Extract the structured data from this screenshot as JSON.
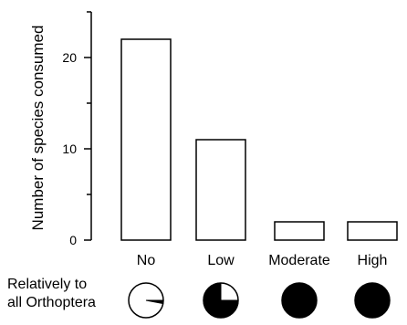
{
  "chart_data": {
    "type": "bar",
    "categories": [
      "No",
      "Low",
      "Moderate",
      "High"
    ],
    "values": [
      22,
      11,
      2,
      2
    ],
    "ylabel": "Number of species consumed",
    "ylim": [
      0,
      25
    ],
    "yticks": [
      0,
      10,
      20
    ],
    "grid": false
  },
  "relative_row": {
    "label_line1": "Relatively to",
    "label_line2": "all Orthoptera",
    "pie_fractions": [
      0.03,
      0.75,
      1.0,
      1.0
    ]
  },
  "colors": {
    "bar_fill": "#ffffff",
    "stroke": "#000000",
    "pie_fill": "#000000"
  }
}
